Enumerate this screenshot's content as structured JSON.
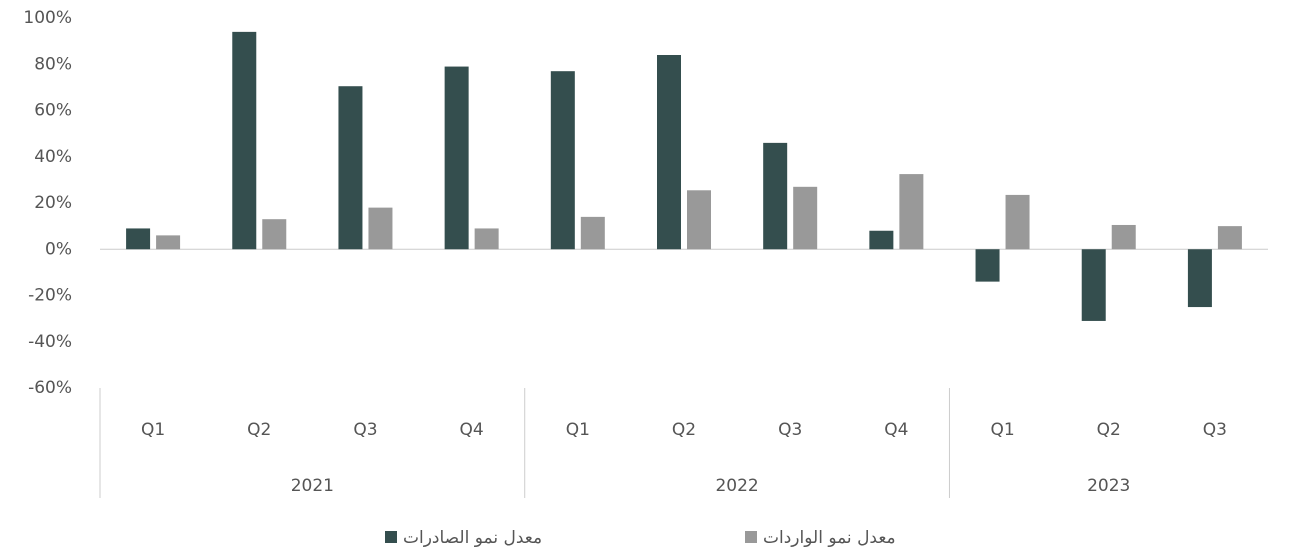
{
  "chart_data": {
    "type": "bar",
    "groups": [
      {
        "name": "2021",
        "categories": [
          "Q1",
          "Q2",
          "Q3",
          "Q4"
        ]
      },
      {
        "name": "2022",
        "categories": [
          "Q1",
          "Q2",
          "Q3",
          "Q4"
        ]
      },
      {
        "name": "2023",
        "categories": [
          "Q1",
          "Q2",
          "Q3"
        ]
      }
    ],
    "series": [
      {
        "name": "معدل نمو الصادرات",
        "color": "#344e4e",
        "values": [
          9,
          94,
          70.5,
          79,
          77,
          84,
          46,
          8,
          -14,
          -31,
          -25
        ]
      },
      {
        "name": "معدل نمو الواردات",
        "color": "#999999",
        "values": [
          6,
          13,
          18,
          9,
          14,
          25.5,
          27,
          32.5,
          23.5,
          10.5,
          10
        ]
      }
    ],
    "ylim": [
      -60,
      100
    ],
    "yticks": [
      {
        "value": -60,
        "label": "-60%"
      },
      {
        "value": -40,
        "label": "-40%"
      },
      {
        "value": -20,
        "label": "-20%"
      },
      {
        "value": 0,
        "label": "0%"
      },
      {
        "value": 20,
        "label": "20%"
      },
      {
        "value": 40,
        "label": "40%"
      },
      {
        "value": 60,
        "label": "60%"
      },
      {
        "value": 80,
        "label": "80%"
      },
      {
        "value": 100,
        "label": "100%"
      }
    ],
    "legend": "bottom"
  }
}
